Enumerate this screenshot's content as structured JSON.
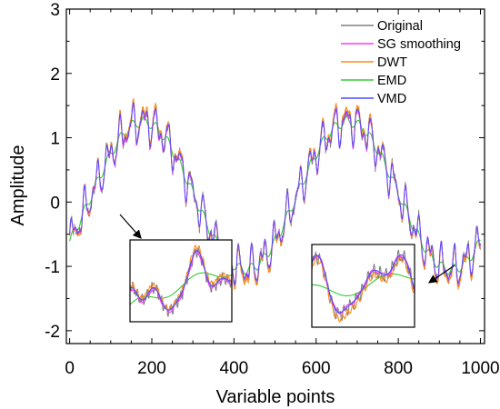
{
  "chart_data": {
    "type": "line",
    "xlabel": "Variable points",
    "ylabel": "Amplitude",
    "xlim": [
      -8,
      1010
    ],
    "ylim": [
      -2.2,
      3.0
    ],
    "x_ticks": [
      0,
      200,
      400,
      600,
      800,
      1000
    ],
    "x_tick_labels": [
      "0",
      "200",
      "400",
      "600",
      "800",
      "1000"
    ],
    "y_ticks": [
      -2,
      -1,
      0,
      1,
      2,
      3
    ],
    "y_tick_labels": [
      "-2",
      "-1",
      "0",
      "1",
      "2",
      "3"
    ],
    "grid": false,
    "legend_position": "top-right",
    "description": "Noisy sine-like signal with period of about 500 points; approx. peaks of 1.5 near x=200 and x=700, troughs near -1.3 at x=20, 470 and 960",
    "series": [
      {
        "name": "Original",
        "color": "#808080"
      },
      {
        "name": "SG smoothing",
        "color": "#ff33ff"
      },
      {
        "name": "DWT",
        "color": "#ff8c1a"
      },
      {
        "name": "EMD",
        "color": "#33cc33"
      },
      {
        "name": "VMD",
        "color": "#4d4dff"
      }
    ],
    "signal_model": {
      "offset": 0.1,
      "components": [
        {
          "amplitude": 1.15,
          "period": 500,
          "phase_deg": -38
        },
        {
          "amplitude": 0.22,
          "period": 29,
          "phase_deg": 0
        },
        {
          "amplitude": 0.12,
          "period": 17,
          "phase_deg": 40
        },
        {
          "amplitude": 0.06,
          "period": 11,
          "phase_deg": 10
        }
      ]
    },
    "insets": [
      {
        "name": "left-zoom",
        "x_range": [
          90,
          140
        ],
        "pointer_from_x": 105,
        "pointer_from_y": -0.3
      },
      {
        "name": "right-zoom",
        "x_range": [
          935,
          975
        ],
        "pointer_from_x": 940,
        "pointer_from_y": -1.15
      }
    ]
  }
}
